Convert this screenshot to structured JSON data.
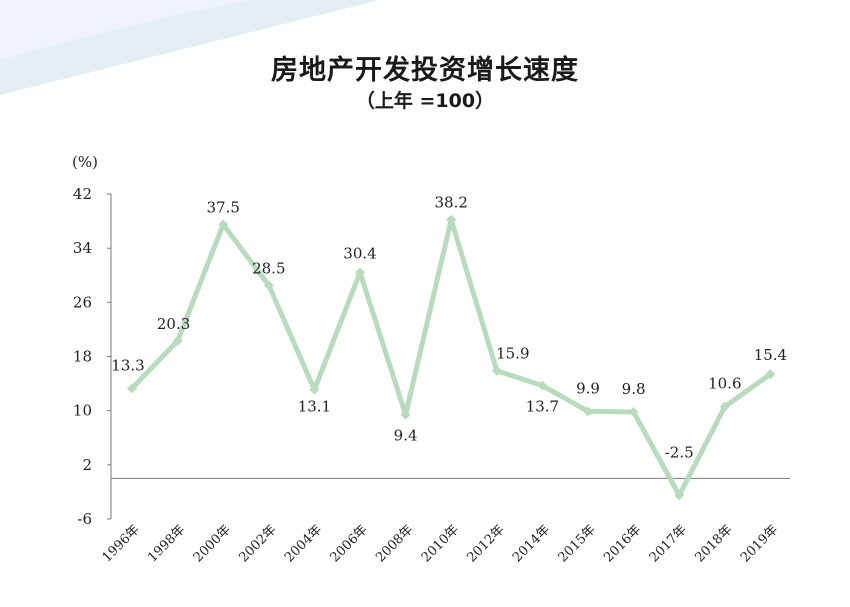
{
  "title": "房地产开发投资增长速度",
  "subtitle": "（上年 =100）",
  "colors": {
    "line": "#b9dbbd",
    "axis": "#7a7a7a",
    "swoosh": "#e4eef5"
  },
  "chart_data": {
    "type": "line",
    "title": "房地产开发投资增长速度",
    "subtitle": "（上年 =100）",
    "unit": "(%)",
    "categories": [
      "1996年",
      "1998年",
      "2000年",
      "2002年",
      "2004年",
      "2006年",
      "2008年",
      "2010年",
      "2012年",
      "2014年",
      "2015年",
      "2016年",
      "2017年",
      "2018年",
      "2019年"
    ],
    "values": [
      13.3,
      20.3,
      37.5,
      28.5,
      13.1,
      30.4,
      9.4,
      38.2,
      15.9,
      13.7,
      9.9,
      9.8,
      -2.5,
      10.6,
      15.4
    ],
    "labels": [
      "13.3",
      "20.3",
      "37.5",
      "28.5",
      "13.1",
      "30.4",
      "9.4",
      "38.2",
      "15.9",
      "13.7",
      "9.9",
      "9.8",
      "-2.5",
      "10.6",
      "15.4"
    ],
    "yticks": [
      42,
      34,
      26,
      18,
      10,
      2,
      -6
    ],
    "ylim": [
      -6,
      42
    ],
    "reference_line": 0,
    "grid": false,
    "legend": "none"
  }
}
